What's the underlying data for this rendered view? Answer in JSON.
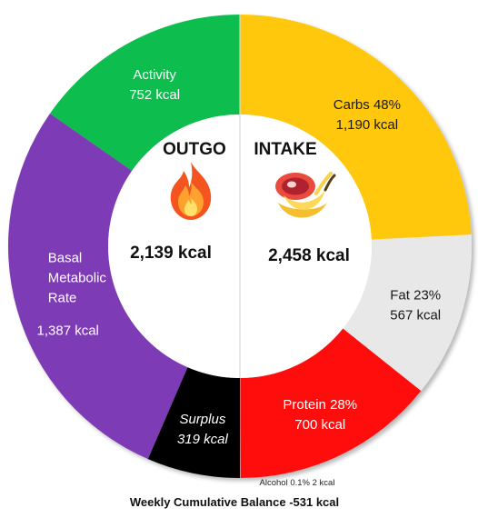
{
  "chart_data": {
    "type": "pie",
    "subtype": "dual-donut",
    "halves": [
      {
        "title": "OUTGO",
        "total": 2139,
        "total_text": "2,139 kcal",
        "icon": "flame-icon",
        "segments": [
          {
            "name": "Activity",
            "value": 752,
            "value_text": "752 kcal",
            "color": "#11bd4d",
            "text_color": "#ffffff"
          },
          {
            "name": "Basal Metabolic Rate",
            "label_lines": [
              "Basal",
              "Metabolic",
              "Rate"
            ],
            "value": 1387,
            "value_text": "1,387 kcal",
            "color": "#7e3ab6",
            "text_color": "#ffffff"
          },
          {
            "name": "Surplus",
            "value": 319,
            "value_text": "319 kcal",
            "color": "#050505",
            "text_color": "#ffffff",
            "italic": true
          }
        ]
      },
      {
        "title": "INTAKE",
        "total": 2458,
        "total_text": "2,458 kcal",
        "icon": "steak-and-banana-icon",
        "segments": [
          {
            "name": "Carbs",
            "percent": 48,
            "label": "Carbs 48%",
            "value": 1190,
            "value_text": "1,190 kcal",
            "color": "#ffc808",
            "text_color": "#1a1a1a"
          },
          {
            "name": "Fat",
            "percent": 23,
            "label": "Fat 23%",
            "value": 567,
            "value_text": "567 kcal",
            "color": "#e8e8e8",
            "text_color": "#1a1a1a"
          },
          {
            "name": "Protein",
            "percent": 28,
            "label": "Protein 28%",
            "value": 700,
            "value_text": "700 kcal",
            "color": "#ff0c0c",
            "text_color": "#ffffff"
          },
          {
            "name": "Alcohol",
            "percent": 0.1,
            "label": "Alcohol 0.1% 2 kcal",
            "value": 2,
            "value_text": "2 kcal",
            "color": "#b9b9b9",
            "text_color": "#1a1a1a"
          }
        ]
      }
    ],
    "footer": "Weekly Cumulative Balance -531 kcal"
  }
}
